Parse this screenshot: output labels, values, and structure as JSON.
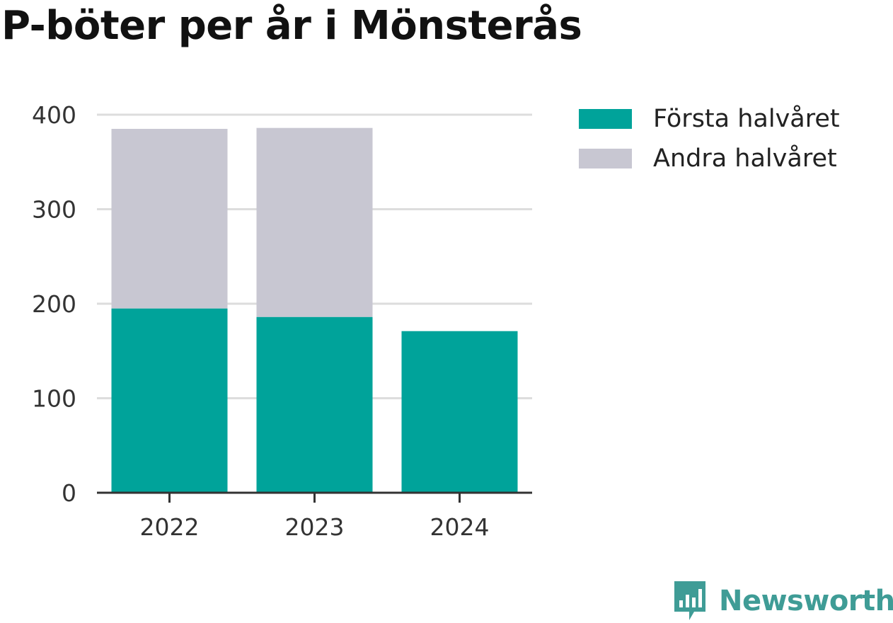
{
  "title": "P-böter per år i Mönsterås",
  "brand": {
    "name": "Newsworthy",
    "icon": "newsworthy-logo-icon",
    "color": "#3f9c96"
  },
  "chart_data": {
    "type": "bar",
    "stacked": true,
    "categories": [
      "2022",
      "2023",
      "2024"
    ],
    "series": [
      {
        "name": "Första halvåret",
        "color": "#00a39a",
        "values": [
          195,
          186,
          171
        ]
      },
      {
        "name": "Andra halvåret",
        "color": "#c8c7d2",
        "values": [
          190,
          200,
          null
        ]
      }
    ],
    "ylim": [
      0,
      400
    ],
    "yticks": [
      0,
      100,
      200,
      300,
      400
    ],
    "grid": true,
    "legend": "right",
    "xlabel": "",
    "ylabel": ""
  }
}
